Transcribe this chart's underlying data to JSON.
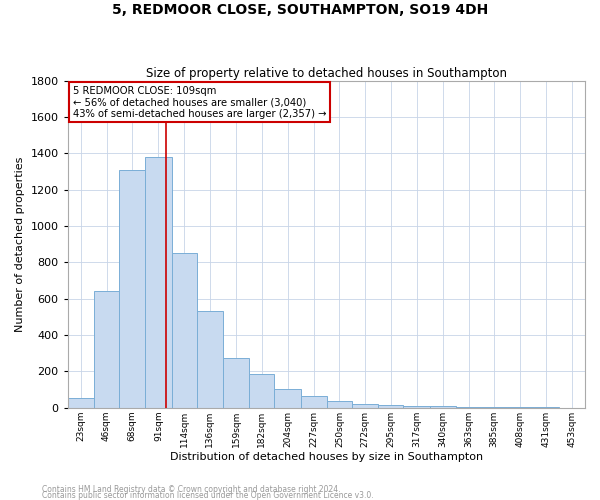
{
  "title": "5, REDMOOR CLOSE, SOUTHAMPTON, SO19 4DH",
  "subtitle": "Size of property relative to detached houses in Southampton",
  "xlabel": "Distribution of detached houses by size in Southampton",
  "ylabel": "Number of detached properties",
  "property_size": 109,
  "annotation_line1": "5 REDMOOR CLOSE: 109sqm",
  "annotation_line2": "← 56% of detached houses are smaller (3,040)",
  "annotation_line3": "43% of semi-detached houses are larger (2,357) →",
  "footer_line1": "Contains HM Land Registry data © Crown copyright and database right 2024.",
  "footer_line2": "Contains public sector information licensed under the Open Government Licence v3.0.",
  "bar_color": "#c8daf0",
  "bar_edge_color": "#7aaed6",
  "redline_color": "#cc0000",
  "annotation_box_edge_color": "#cc0000",
  "bins_left": [
    23,
    46,
    68,
    91,
    114,
    136,
    159,
    182,
    204,
    227,
    250,
    272,
    295,
    317,
    340,
    363,
    385,
    408,
    431,
    453,
    476
  ],
  "counts": [
    55,
    640,
    1310,
    1380,
    850,
    530,
    275,
    185,
    105,
    65,
    35,
    20,
    15,
    12,
    8,
    5,
    4,
    3,
    2,
    1,
    0
  ],
  "ylim": [
    0,
    1800
  ],
  "yticks": [
    0,
    200,
    400,
    600,
    800,
    1000,
    1200,
    1400,
    1600,
    1800
  ],
  "background_color": "#ffffff",
  "grid_color": "#c8d4e8",
  "title_fontsize": 10,
  "subtitle_fontsize": 8.5,
  "xlabel_fontsize": 8,
  "ylabel_fontsize": 8
}
